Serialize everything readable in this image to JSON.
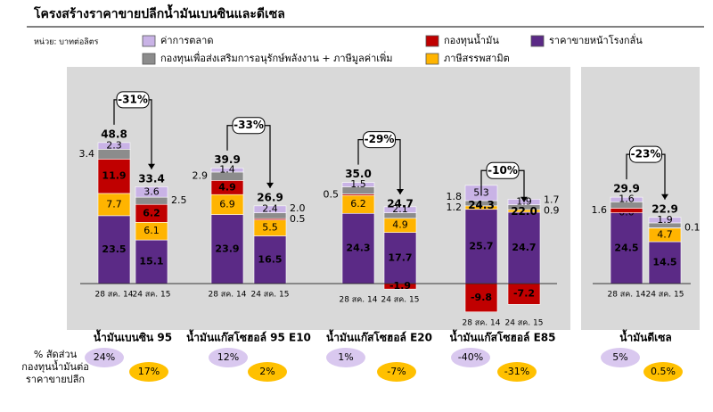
{
  "title": "โครงสร้างราคาขายปลีกน้ำมันเบนซินและดีเซล",
  "unit": "หน่วย: บาทต่อลิตร",
  "share_caption": [
    "% สัดส่วน",
    "กองทุนน้ำมันต่อ",
    "ราคาขายปลีก"
  ],
  "chart_data": {
    "type": "stacked_bar",
    "series": [
      {
        "name": "ราคาขายหน้าโรงกลั่น",
        "color": "#5b2a86"
      },
      {
        "name": "ภาษีสรรพสามิต",
        "color": "#ffb400"
      },
      {
        "name": "กองทุนน้ำมัน",
        "color": "#c00000"
      },
      {
        "name": "กองทุนเพื่อส่งเสริมการอนุรักษ์พลังงาน + ภาษีมูลค่าเพิ่ม",
        "color": "#8c8c8c"
      },
      {
        "name": "ค่าการตลาด",
        "color": "#c9b3e6"
      }
    ],
    "groups": [
      {
        "name": "น้ำมันเบนซิน 95",
        "change": -31,
        "change_label": "-31%",
        "shares": [
          24,
          17
        ],
        "share_labels": [
          "24%",
          "17%"
        ],
        "bars": [
          {
            "date": "28 สค. 14",
            "total": 48.8,
            "total_label": "48.8",
            "values": [
              23.5,
              7.7,
              11.9,
              3.4,
              2.3
            ],
            "value_labels": [
              "23.5",
              "7.7",
              "11.9",
              "3.4",
              "2.3"
            ]
          },
          {
            "date": "24 สค. 15",
            "total": 33.4,
            "total_label": "33.4",
            "values": [
              15.1,
              6.1,
              6.2,
              2.5,
              3.6
            ],
            "value_labels": [
              "15.1",
              "6.1",
              "6.2",
              "2.5",
              "3.6"
            ]
          }
        ]
      },
      {
        "name": "น้ำมันแก๊สโซฮอล์ 95 E10",
        "change": -33,
        "change_label": "-33%",
        "shares": [
          12,
          2
        ],
        "share_labels": [
          "12%",
          "2%"
        ],
        "bars": [
          {
            "date": "28 สค. 14",
            "total": 39.9,
            "total_label": "39.9",
            "values": [
              23.9,
              6.9,
              4.9,
              2.9,
              1.4
            ],
            "value_labels": [
              "23.9",
              "6.9",
              "4.9",
              "2.9",
              "1.4"
            ]
          },
          {
            "date": "24 สค. 15",
            "total": 26.9,
            "total_label": "26.9",
            "values": [
              16.5,
              5.5,
              0.5,
              2.0,
              2.4
            ],
            "value_labels": [
              "16.5",
              "5.5",
              "0.5",
              "2.0",
              "2.4"
            ]
          }
        ]
      },
      {
        "name": "น้ำมันแก๊สโซฮอล์ E20",
        "change": -29,
        "change_label": "-29%",
        "shares": [
          1,
          -7
        ],
        "share_labels": [
          "1%",
          "-7%"
        ],
        "bars": [
          {
            "date": "28 สค. 14",
            "total": 35.0,
            "total_label": "35.0",
            "values": [
              24.3,
              6.2,
              0.5,
              2.5,
              1.5
            ],
            "value_labels": [
              "24.3",
              "6.2",
              "0.5",
              null,
              "1.5"
            ]
          },
          {
            "date": "24 สค. 15",
            "total": 24.7,
            "total_label": "24.7",
            "values": [
              17.7,
              4.9,
              -1.9,
              1.9,
              2.1
            ],
            "value_labels": [
              "17.7",
              "4.9",
              "-1.9",
              null,
              "2.1"
            ]
          }
        ]
      },
      {
        "name": "น้ำมันแก๊สโซฮอล์ E85",
        "change": -10,
        "change_label": "-10%",
        "shares": [
          -40,
          -31
        ],
        "share_labels": [
          "-40%",
          "-31%"
        ],
        "bars": [
          {
            "date": "28 สค. 14",
            "total": 24.3,
            "total_label": "24.3",
            "values": [
              25.7,
              1.2,
              -9.8,
              1.8,
              5.3
            ],
            "value_labels": [
              "25.7",
              "1.2",
              "-9.8",
              "1.8",
              "5.3"
            ]
          },
          {
            "date": "24 สค. 15",
            "total": 22.0,
            "total_label": "22.0",
            "values": [
              24.7,
              0.9,
              -7.2,
              1.7,
              1.9
            ],
            "value_labels": [
              "24.7",
              "0.9",
              "-7.2",
              "1.7",
              "1.9"
            ]
          }
        ]
      },
      {
        "name": "น้ำมันดีเซล",
        "change": -23,
        "change_label": "-23%",
        "shares": [
          5,
          0.5
        ],
        "share_labels": [
          "5%",
          "0.5%"
        ],
        "bars": [
          {
            "date": "28 สค. 14",
            "total": 29.9,
            "total_label": "29.9",
            "values": [
              24.5,
              0.0,
              1.6,
              2.2,
              1.6
            ],
            "value_labels": [
              "24.5",
              "0.0",
              "1.6",
              null,
              "1.6"
            ]
          },
          {
            "date": "24 สค. 15",
            "total": 22.9,
            "total_label": "22.9",
            "values": [
              14.5,
              4.7,
              0.1,
              1.7,
              1.9
            ],
            "value_labels": [
              "14.5",
              "4.7",
              "0.1",
              null,
              "1.9"
            ]
          }
        ]
      }
    ]
  }
}
